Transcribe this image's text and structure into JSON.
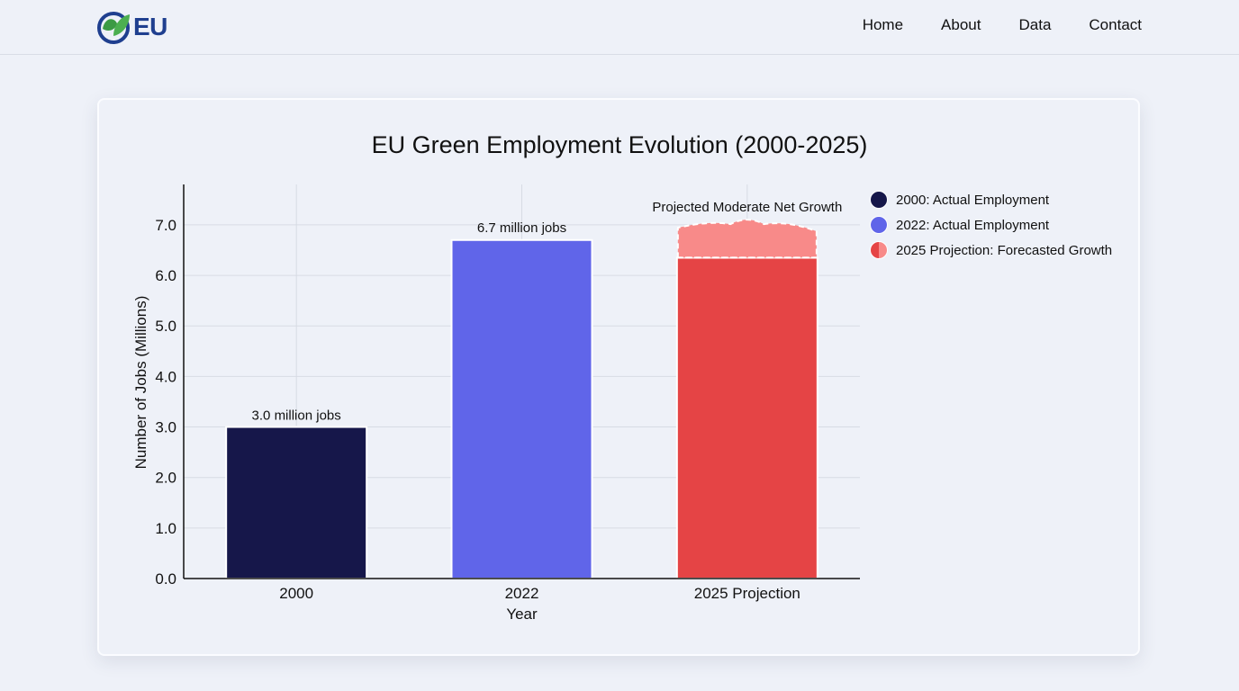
{
  "header": {
    "logo_text": "EU",
    "nav": [
      {
        "label": "Home"
      },
      {
        "label": "About"
      },
      {
        "label": "Data"
      },
      {
        "label": "Contact"
      }
    ]
  },
  "chart_data": {
    "type": "bar",
    "title": "EU Green Employment Evolution (2000-2025)",
    "xlabel": "Year",
    "ylabel": "Number of Jobs (Millions)",
    "ylim": [
      0,
      7.8
    ],
    "yticks": [
      "0.0",
      "1.0",
      "2.0",
      "3.0",
      "4.0",
      "5.0",
      "6.0",
      "7.0"
    ],
    "grid": true,
    "legend_position": "right",
    "categories": [
      "2000",
      "2022",
      "2025 Projection"
    ],
    "values": [
      3.0,
      6.7,
      6.35
    ],
    "projected_range_top": 7.05,
    "data_labels": [
      "3.0 million jobs",
      "6.7 million jobs",
      "Projected Moderate Net Growth"
    ],
    "colors": [
      "#16174a",
      "#6065e9",
      "#e54445"
    ],
    "projection_fill_color": "#f88a89",
    "legend": [
      {
        "label": "2000: Actual Employment",
        "color": "#16174a"
      },
      {
        "label": "2022: Actual Employment",
        "color": "#6065e9"
      },
      {
        "label": "2025 Projection: Forecasted Growth",
        "color": "#e54445",
        "color2": "#f88a89"
      }
    ]
  }
}
